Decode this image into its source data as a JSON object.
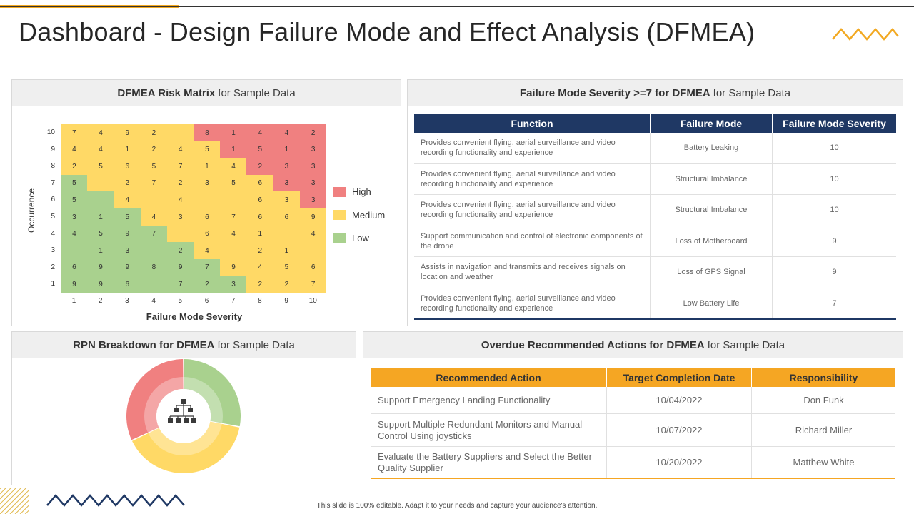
{
  "title": "Dashboard - Design Failure Mode and Effect Analysis (DFMEA)",
  "footer": "This slide is 100% editable. Adapt it to your needs and capture your audience's attention.",
  "colors": {
    "accent": "#f2a922",
    "navy": "#1f3864",
    "high": "#f08080",
    "medium": "#ffd966",
    "low": "#a9d18e"
  },
  "risk_matrix": {
    "title_bold": "DFMEA Risk Matrix",
    "title_rest": "for Sample Data",
    "xlabel": "Failure Mode Severity",
    "ylabel": "Occurrence",
    "legend": [
      {
        "label": "High",
        "color": "#f08080"
      },
      {
        "label": "Medium",
        "color": "#ffd966"
      },
      {
        "label": "Low",
        "color": "#a9d18e"
      }
    ]
  },
  "severity_table": {
    "title_bold": "Failure Mode Severity >=7 for DFMEA",
    "title_rest": "for Sample Data",
    "headers": [
      "Function",
      "Failure Mode",
      "Failure Mode Severity"
    ],
    "rows": [
      [
        "Provides convenient flying, aerial surveillance and video recording functionality and experience",
        "Battery Leaking",
        "10"
      ],
      [
        "Provides convenient flying, aerial surveillance and video recording functionality and experience",
        "Structural Imbalance",
        "10"
      ],
      [
        "Provides convenient flying, aerial surveillance and video recording functionality and experience",
        "Structural Imbalance",
        "10"
      ],
      [
        "Support communication and control of electronic components of the drone",
        "Loss of Motherboard",
        "9"
      ],
      [
        "Assists in navigation and transmits and receives signals on location and weather",
        "Loss of GPS Signal",
        "9"
      ],
      [
        "Provides convenient flying, aerial surveillance and video recording functionality and experience",
        "Low Battery Life",
        "7"
      ]
    ]
  },
  "rpn": {
    "title_bold": "RPN Breakdown for DFMEA",
    "title_rest": "for Sample Data"
  },
  "actions_table": {
    "title_bold": "Overdue Recommended Actions for DFMEA",
    "title_rest": "for Sample Data",
    "headers": [
      "Recommended Action",
      "Target Completion Date",
      "Responsibility"
    ],
    "rows": [
      [
        "Support Emergency Landing Functionality",
        "10/04/2022",
        "Don Funk"
      ],
      [
        "Support Multiple Redundant Monitors and Manual Control Using joysticks",
        "10/07/2022",
        "Richard Miller"
      ],
      [
        "Evaluate the Battery Suppliers and Select the Better Quality Supplier",
        "10/20/2022",
        "Matthew White"
      ]
    ]
  },
  "chart_data": [
    {
      "type": "heatmap",
      "title": "DFMEA Risk Matrix for Sample Data",
      "xlabel": "Failure Mode Severity",
      "ylabel": "Occurrence",
      "x": [
        1,
        2,
        3,
        4,
        5,
        6,
        7,
        8,
        9,
        10
      ],
      "y": [
        10,
        9,
        8,
        7,
        6,
        5,
        4,
        3,
        2,
        1
      ],
      "values": [
        [
          "7",
          "4",
          "9",
          "2",
          "",
          "8",
          "1",
          "4",
          "4",
          "2"
        ],
        [
          "4",
          "4",
          "1",
          "2",
          "4",
          "5",
          "1",
          "5",
          "1",
          "3"
        ],
        [
          "2",
          "5",
          "6",
          "5",
          "7",
          "1",
          "4",
          "2",
          "3",
          "3"
        ],
        [
          "5",
          "",
          "2",
          "7",
          "2",
          "3",
          "5",
          "6",
          "3",
          "3"
        ],
        [
          "5",
          "",
          "4",
          "",
          "4",
          "",
          "",
          "6",
          "3",
          "3"
        ],
        [
          "3",
          "1",
          "5",
          "4",
          "3",
          "6",
          "7",
          "6",
          "6",
          "9"
        ],
        [
          "4",
          "5",
          "9",
          "7",
          "",
          "6",
          "4",
          "1",
          "",
          "4"
        ],
        [
          "",
          "1",
          "3",
          "",
          "2",
          "4",
          "",
          "2",
          "1",
          ""
        ],
        [
          "6",
          "9",
          "9",
          "8",
          "9",
          "7",
          "9",
          "4",
          "5",
          "6"
        ],
        [
          "9",
          "9",
          "6",
          "",
          "7",
          "2",
          "3",
          "2",
          "2",
          "7"
        ]
      ],
      "levels": [
        [
          "M",
          "M",
          "M",
          "M",
          "M",
          "H",
          "H",
          "H",
          "H",
          "H"
        ],
        [
          "M",
          "M",
          "M",
          "M",
          "M",
          "M",
          "H",
          "H",
          "H",
          "H"
        ],
        [
          "M",
          "M",
          "M",
          "M",
          "M",
          "M",
          "M",
          "H",
          "H",
          "H"
        ],
        [
          "L",
          "M",
          "M",
          "M",
          "M",
          "M",
          "M",
          "M",
          "H",
          "H"
        ],
        [
          "L",
          "L",
          "M",
          "M",
          "M",
          "M",
          "M",
          "M",
          "M",
          "H"
        ],
        [
          "L",
          "L",
          "L",
          "M",
          "M",
          "M",
          "M",
          "M",
          "M",
          "M"
        ],
        [
          "L",
          "L",
          "L",
          "L",
          "M",
          "M",
          "M",
          "M",
          "M",
          "M"
        ],
        [
          "L",
          "L",
          "L",
          "L",
          "L",
          "M",
          "M",
          "M",
          "M",
          "M"
        ],
        [
          "L",
          "L",
          "L",
          "L",
          "L",
          "L",
          "M",
          "M",
          "M",
          "M"
        ],
        [
          "L",
          "L",
          "L",
          "L",
          "L",
          "L",
          "L",
          "M",
          "M",
          "M"
        ]
      ],
      "legend": [
        "High",
        "Medium",
        "Low"
      ]
    },
    {
      "type": "pie",
      "title": "RPN Breakdown for DFMEA for Sample Data",
      "labels": [
        "Low",
        "Medium",
        "High"
      ],
      "values": [
        28,
        40,
        32
      ],
      "colors": [
        "#a9d18e",
        "#ffd966",
        "#f08080"
      ]
    }
  ]
}
